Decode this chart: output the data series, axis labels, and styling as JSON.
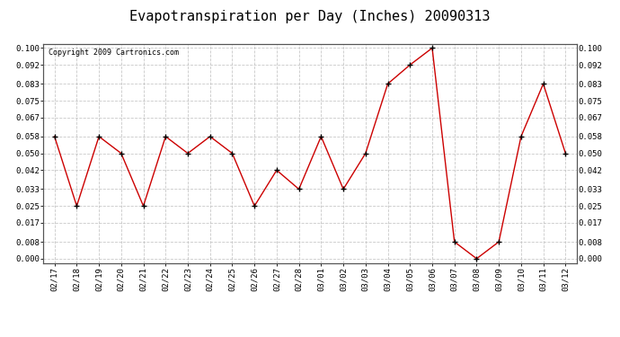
{
  "title": "Evapotranspiration per Day (Inches) 20090313",
  "copyright_text": "Copyright 2009 Cartronics.com",
  "x_labels": [
    "02/17",
    "02/18",
    "02/19",
    "02/20",
    "02/21",
    "02/22",
    "02/23",
    "02/24",
    "02/25",
    "02/26",
    "02/27",
    "02/28",
    "03/01",
    "03/02",
    "03/03",
    "03/04",
    "03/05",
    "03/06",
    "03/07",
    "03/08",
    "03/09",
    "03/10",
    "03/11",
    "03/12"
  ],
  "y_values": [
    0.058,
    0.025,
    0.058,
    0.05,
    0.025,
    0.058,
    0.05,
    0.058,
    0.05,
    0.025,
    0.042,
    0.033,
    0.058,
    0.033,
    0.05,
    0.083,
    0.092,
    0.1,
    0.008,
    0.0,
    0.008,
    0.058,
    0.083,
    0.05
  ],
  "line_color": "#cc0000",
  "marker": "+",
  "marker_color": "#000000",
  "bg_color": "#ffffff",
  "plot_bg_color": "#ffffff",
  "grid_color": "#bbbbbb",
  "y_min": 0.0,
  "y_max": 0.1,
  "y_ticks": [
    0.0,
    0.008,
    0.017,
    0.025,
    0.033,
    0.042,
    0.05,
    0.058,
    0.067,
    0.075,
    0.083,
    0.092,
    0.1
  ],
  "title_fontsize": 11,
  "tick_fontsize": 6.5,
  "copyright_fontsize": 6
}
